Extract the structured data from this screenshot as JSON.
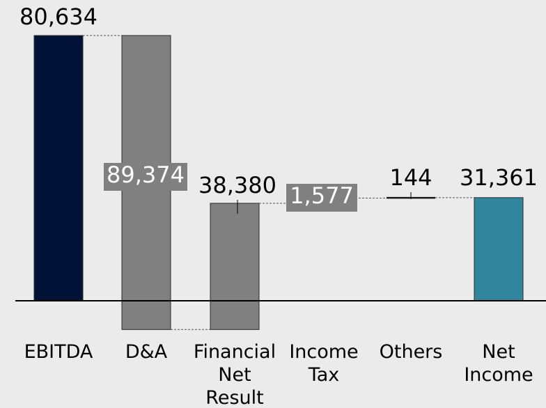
{
  "chart_data": {
    "type": "waterfall",
    "title": "",
    "xlabel": "",
    "ylabel": "",
    "unit": "",
    "ylim": [
      -8000,
      90000
    ],
    "grid": false,
    "legend": "none",
    "categories": [
      "EBITDA",
      "D&A",
      "Financial Net Result",
      "Income Tax",
      "Others",
      "Net Income"
    ],
    "category_lines": [
      [
        "EBITDA"
      ],
      [
        "D&A"
      ],
      [
        "Financial",
        "Net",
        "Result"
      ],
      [
        "Income",
        "Tax"
      ],
      [
        "Others"
      ],
      [
        "Net",
        "Income"
      ]
    ],
    "steps": [
      {
        "label": "EBITDA",
        "start": 0,
        "end": 80634,
        "value_label": "80,634",
        "kind": "total",
        "color": "#011236"
      },
      {
        "label": "D&A",
        "start": 80634,
        "end": -8740,
        "value_label": "89,374",
        "kind": "delta",
        "color": "#808080"
      },
      {
        "label": "Financial Net Result",
        "start": -8740,
        "end": 29640,
        "value_label": "38,380",
        "kind": "delta",
        "color": "#808080"
      },
      {
        "label": "Income Tax",
        "start": 29640,
        "end": 31217,
        "value_label": "1,577",
        "kind": "delta",
        "color": "#808080"
      },
      {
        "label": "Others",
        "start": 31217,
        "end": 31361,
        "value_label": "144",
        "kind": "delta",
        "color": "#1a1a1a"
      },
      {
        "label": "Net Income",
        "start": 0,
        "end": 31361,
        "value_label": "31,361",
        "kind": "total",
        "color": "#31869e"
      }
    ]
  }
}
